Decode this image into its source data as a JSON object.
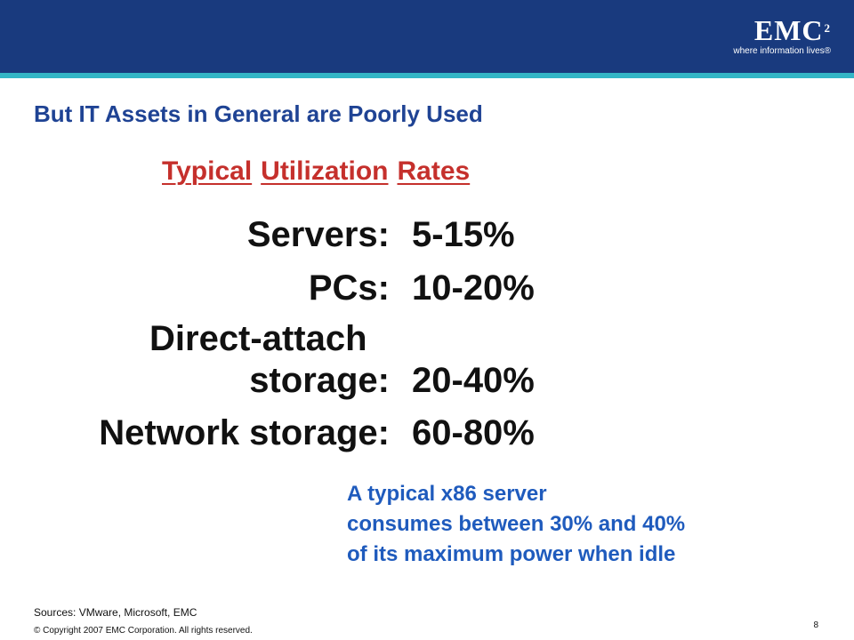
{
  "header": {
    "logo_text": "EMC",
    "logo_superscript": "2",
    "logo_tagline": "where information lives®",
    "bar_color": "#193a7e",
    "stripe_color": "#33b6c6"
  },
  "slide": {
    "title": "But IT Assets in General are Poorly Used",
    "subtitle_words": [
      "Typical",
      "Utilization",
      "Rates"
    ],
    "rates": [
      {
        "label": "Servers:",
        "value": "5-15%"
      },
      {
        "label": "PCs:",
        "value": "10-20%"
      },
      {
        "label_line1": "Direct-attach",
        "label": "storage:",
        "value": "20-40%"
      },
      {
        "label": "Network storage:",
        "value": "60-80%"
      }
    ],
    "note_lines": [
      "A typical x86 server",
      "consumes between 30% and 40%",
      "of its maximum power when idle"
    ]
  },
  "footer": {
    "sources": "Sources: VMware, Microsoft, EMC",
    "copyright": "© Copyright 2007 EMC Corporation. All rights reserved.",
    "page_number": "8"
  }
}
